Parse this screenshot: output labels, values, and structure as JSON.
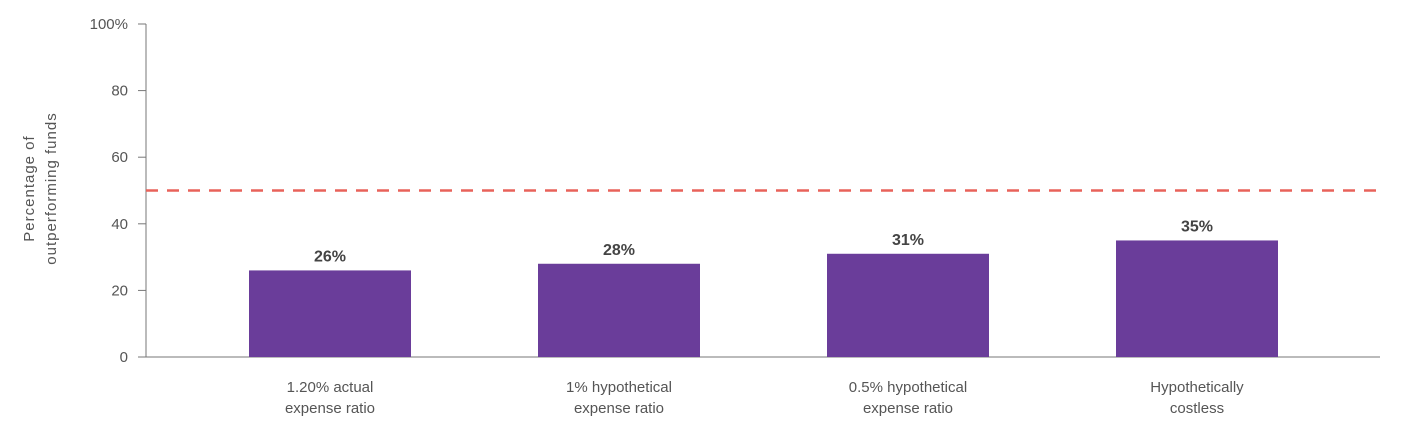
{
  "chart_data": {
    "type": "bar",
    "categories": [
      [
        "1.20% actual",
        "expense ratio"
      ],
      [
        "1% hypothetical",
        "expense ratio"
      ],
      [
        "0.5% hypothetical",
        "expense ratio"
      ],
      [
        "Hypothetically",
        "costless"
      ]
    ],
    "values": [
      26,
      28,
      31,
      35
    ],
    "value_labels": [
      "26%",
      "28%",
      "31%",
      "35%"
    ],
    "ylabel": [
      "Percentage of",
      "outperforming funds"
    ],
    "ylim": [
      0,
      100
    ],
    "yticks": [
      0,
      20,
      40,
      60,
      80,
      100
    ],
    "ytick_labels": [
      "0",
      "20",
      "40",
      "60",
      "80",
      "100%"
    ],
    "reference_line": {
      "value": 50,
      "style": "dashed"
    },
    "grid": false,
    "colors": {
      "bar": "#6a3d9a",
      "reference_line": "#e8625a",
      "axis": "#777777"
    }
  }
}
